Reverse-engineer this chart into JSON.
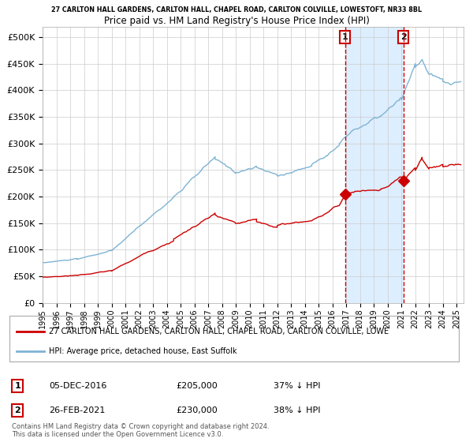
{
  "title_line1": "27 CARLTON HALL GARDENS, CARLTON HALL, CHAPEL ROAD, CARLTON COLVILLE, LOWESTOFT, NR33 8BL",
  "title_line2": "Price paid vs. HM Land Registry's House Price Index (HPI)",
  "xlim_start": 1995.0,
  "xlim_end": 2025.5,
  "ylim": [
    0,
    520000
  ],
  "yticks": [
    0,
    50000,
    100000,
    150000,
    200000,
    250000,
    300000,
    350000,
    400000,
    450000,
    500000
  ],
  "ytick_labels": [
    "£0",
    "£50K",
    "£100K",
    "£150K",
    "£200K",
    "£250K",
    "£300K",
    "£350K",
    "£400K",
    "£450K",
    "£500K"
  ],
  "xtick_years": [
    1995,
    1996,
    1997,
    1998,
    1999,
    2000,
    2001,
    2002,
    2003,
    2004,
    2005,
    2006,
    2007,
    2008,
    2009,
    2010,
    2011,
    2012,
    2013,
    2014,
    2015,
    2016,
    2017,
    2018,
    2019,
    2020,
    2021,
    2022,
    2023,
    2024,
    2025
  ],
  "hpi_color": "#7fb3d3",
  "price_color": "#cc0000",
  "marker_color": "#cc0000",
  "vline_color": "#cc0000",
  "shade_color": "#ddeeff",
  "transaction1_x": 2016.92,
  "transaction1_y": 205000,
  "transaction2_x": 2021.15,
  "transaction2_y": 230000,
  "legend_label_red": "27 CARLTON HALL GARDENS, CARLTON HALL, CHAPEL ROAD, CARLTON COLVILLE, LOWE",
  "legend_label_blue": "HPI: Average price, detached house, East Suffolk",
  "note_text": "Contains HM Land Registry data © Crown copyright and database right 2024.\nThis data is licensed under the Open Government Licence v3.0.",
  "annotation1_date": "05-DEC-2016",
  "annotation1_price": "£205,000",
  "annotation1_hpi": "37% ↓ HPI",
  "annotation2_date": "26-FEB-2021",
  "annotation2_price": "£230,000",
  "annotation2_hpi": "38% ↓ HPI",
  "background_color": "#ffffff",
  "grid_color": "#cccccc"
}
